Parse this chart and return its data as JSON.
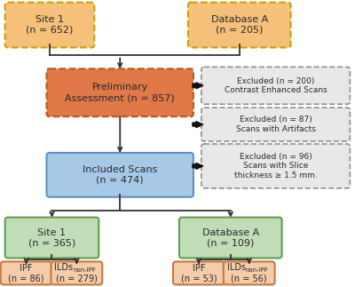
{
  "bg_color": "#ffffff",
  "text_color": "#2a2a2a",
  "line_color": "#333333",
  "boxes": {
    "site1_top": {
      "label": "Site 1\n(n = 652)",
      "fc": "#F5C07A",
      "ec": "#C8A400",
      "ls": "--",
      "lw": 1.5,
      "fs": 8
    },
    "dbA_top": {
      "label": "Database A\n(n = 205)",
      "fc": "#F5C07A",
      "ec": "#C8A400",
      "ls": "--",
      "lw": 1.5,
      "fs": 8
    },
    "prelim": {
      "label": "Preliminary\nAssessment (n = 857)",
      "fc": "#E07848",
      "ec": "#B85A20",
      "ls": "--",
      "lw": 1.5,
      "fs": 8
    },
    "included": {
      "label": "Included Scans\n(n = 474)",
      "fc": "#A8C8E8",
      "ec": "#6090C0",
      "ls": "-",
      "lw": 1.5,
      "fs": 8
    },
    "site1_mid": {
      "label": "Site 1\n(n = 365)",
      "fc": "#C0DDB8",
      "ec": "#60A050",
      "ls": "-",
      "lw": 1.5,
      "fs": 8
    },
    "dbA_mid": {
      "label": "Database A\n(n = 109)",
      "fc": "#C0DDB8",
      "ec": "#60A050",
      "ls": "-",
      "lw": 1.5,
      "fs": 8
    },
    "ipf1": {
      "label": "IPF\n(n = 86)",
      "fc": "#F5CCAA",
      "ec": "#C87840",
      "ls": "-",
      "lw": 1.5,
      "fs": 7
    },
    "ilds1": {
      "label_main": "ILDs",
      "label_sub": "non-IPF",
      "label_rest": "\n(n = 279)",
      "fc": "#F5CCAA",
      "ec": "#C87840",
      "ls": "-",
      "lw": 1.5,
      "fs": 7
    },
    "ipf2": {
      "label": "IPF\n(n = 53)",
      "fc": "#F5CCAA",
      "ec": "#C87840",
      "ls": "-",
      "lw": 1.5,
      "fs": 7
    },
    "ilds2": {
      "label_main": "ILDs",
      "label_sub": "non-IPF",
      "label_rest": "\n(n = 56)",
      "fc": "#F5CCAA",
      "ec": "#C87840",
      "ls": "-",
      "lw": 1.5,
      "fs": 7
    },
    "excl1": {
      "label": "Excluded (n = 200)\nContrast Enhanced Scans",
      "fc": "#E8E8E8",
      "ec": "#909090",
      "ls": "--",
      "lw": 1.2,
      "fs": 6.5
    },
    "excl2": {
      "label": "Excluded (n = 87)\nScans with Artifacts",
      "fc": "#E8E8E8",
      "ec": "#909090",
      "ls": "--",
      "lw": 1.2,
      "fs": 6.5
    },
    "excl3": {
      "label": "Excluded (n = 96)\nScans with Slice\nthickness ≥ 1.5 mm.",
      "fc": "#E8E8E8",
      "ec": "#909090",
      "ls": "--",
      "lw": 1.2,
      "fs": 6.5
    }
  }
}
